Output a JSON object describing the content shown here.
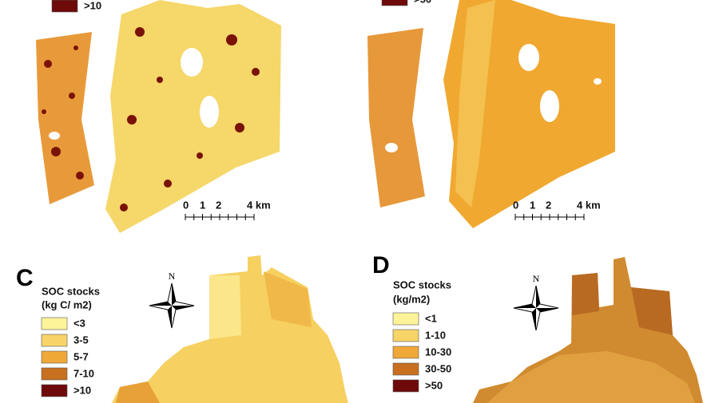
{
  "panels": [
    {
      "legend": {
        "items": [
          {
            "label": ">10",
            "color": "#6e0a0a"
          }
        ]
      },
      "scale": {
        "ticks": [
          "0",
          "1",
          "2",
          "4 km"
        ]
      }
    },
    {
      "legend": {
        "items": [
          {
            "label": ">50",
            "color": "#6e0a0a"
          }
        ]
      },
      "scale": {
        "ticks": [
          "0",
          "1",
          "2",
          "4 km"
        ]
      }
    },
    {
      "letter": "C",
      "north": "N",
      "legend": {
        "title": "SOC stocks",
        "unit": "(kg C/ m2)",
        "items": [
          {
            "label": "<3",
            "color": "#fdf49a"
          },
          {
            "label": "3-5",
            "color": "#f8d468"
          },
          {
            "label": "5-7",
            "color": "#f0a838"
          },
          {
            "label": "7-10",
            "color": "#c8701f"
          },
          {
            "label": ">10",
            "color": "#6e0a0a"
          }
        ]
      }
    },
    {
      "letter": "D",
      "north": "N",
      "legend": {
        "title": "SOC stocks",
        "unit": "(kg/m2)",
        "items": [
          {
            "label": "<1",
            "color": "#fdf49a"
          },
          {
            "label": "1-10",
            "color": "#f8d468"
          },
          {
            "label": "10-30",
            "color": "#f0a838"
          },
          {
            "label": "30-50",
            "color": "#c8701f"
          },
          {
            "label": ">50",
            "color": "#6e0a0a"
          }
        ]
      }
    }
  ]
}
